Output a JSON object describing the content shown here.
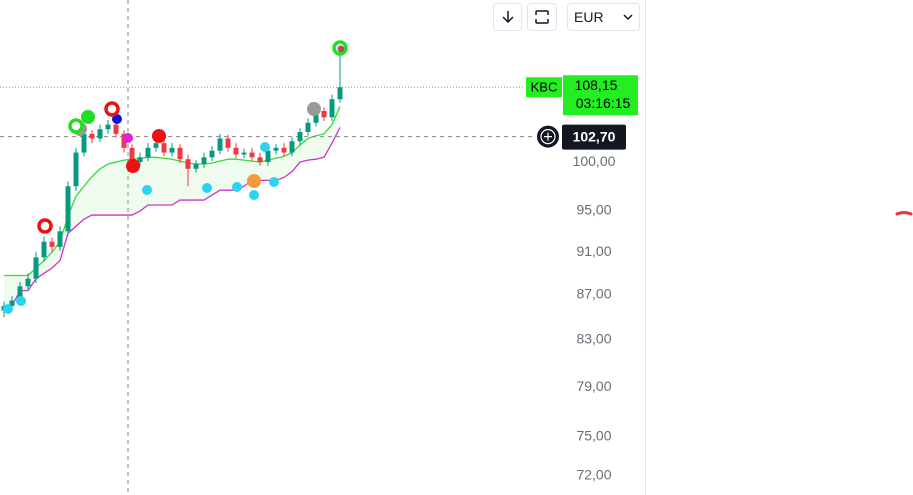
{
  "chart_data": {
    "type": "candlestick",
    "symbol": "KBC",
    "currency": "EUR",
    "countdown": "03:16:15",
    "log_scale": true,
    "ylim": [
      70.56,
      118.5
    ],
    "yticks": [
      {
        "value": 100,
        "label": "100,00"
      },
      {
        "value": 95,
        "label": "95,00"
      },
      {
        "value": 91,
        "label": "91,00"
      },
      {
        "value": 87,
        "label": "87,00"
      },
      {
        "value": 83,
        "label": "83,00"
      },
      {
        "value": 79,
        "label": "79,00"
      },
      {
        "value": 75,
        "label": "75,00"
      },
      {
        "value": 72,
        "label": "72,00"
      }
    ],
    "open": [
      85.6,
      86.0,
      86.5,
      87.8,
      88.5,
      90.5,
      92.0,
      91.5,
      93.0,
      97.5,
      101.0,
      103.0,
      102.5,
      103.5,
      104.0,
      103.0,
      101.5,
      100.0,
      100.5,
      101.5,
      102.0,
      101.0,
      101.5,
      100.3,
      99.3,
      99.8,
      100.5,
      101.2,
      102.5,
      101.5,
      100.8,
      101.0,
      100.5,
      100.0,
      101.2,
      101.5,
      101.0,
      102.2,
      103.2,
      104.2,
      105.5,
      104.8,
      106.8
    ],
    "high": [
      86.4,
      86.9,
      88.2,
      89.0,
      91.0,
      92.5,
      92.4,
      93.5,
      98.0,
      101.5,
      103.6,
      103.4,
      104.0,
      104.5,
      104.4,
      103.4,
      101.9,
      101.0,
      102.0,
      102.6,
      102.5,
      102.0,
      101.9,
      100.8,
      100.2,
      101.0,
      101.7,
      103.0,
      102.9,
      102.0,
      101.4,
      101.5,
      101.0,
      101.6,
      101.9,
      102.0,
      102.6,
      103.6,
      104.7,
      106.0,
      105.9,
      107.3,
      111.9
    ],
    "low": [
      85.0,
      85.5,
      86.1,
      87.4,
      88.1,
      90.1,
      91.0,
      91.1,
      92.6,
      97.0,
      100.6,
      102.0,
      102.1,
      103.0,
      102.6,
      101.0,
      99.5,
      99.6,
      100.1,
      101.1,
      100.6,
      100.6,
      99.9,
      97.5,
      98.9,
      99.4,
      100.1,
      100.8,
      101.1,
      100.4,
      100.4,
      100.1,
      99.6,
      99.6,
      100.8,
      100.6,
      100.6,
      101.8,
      102.8,
      103.8,
      104.4,
      104.4,
      106.4
    ],
    "close": [
      86.0,
      86.5,
      87.8,
      88.5,
      90.5,
      92.0,
      91.5,
      93.0,
      97.5,
      101.0,
      103.0,
      102.5,
      103.5,
      104.0,
      103.0,
      101.5,
      100.0,
      100.5,
      101.5,
      102.0,
      101.0,
      101.5,
      100.3,
      99.3,
      99.8,
      100.5,
      101.2,
      102.5,
      101.5,
      100.8,
      101.0,
      100.5,
      100.0,
      101.2,
      101.5,
      101.0,
      102.2,
      103.2,
      104.2,
      105.5,
      104.8,
      106.8,
      108.15
    ],
    "up_color": "#089981",
    "down_color": "#f23645",
    "series": [
      {
        "color": "#33dd33",
        "values": [
          88.8,
          88.8,
          88.8,
          88.8,
          89.5,
          90.2,
          91.0,
          92.0,
          94.5,
          96.5,
          97.5,
          98.5,
          99.3,
          99.8,
          100.0,
          100.2,
          100.3,
          100.4,
          100.5,
          100.5,
          100.4,
          100.3,
          100.1,
          99.9,
          99.8,
          99.8,
          99.9,
          100.1,
          100.3,
          100.3,
          100.2,
          100.1,
          100.0,
          100.2,
          100.4,
          100.6,
          101.0,
          101.8,
          102.5,
          102.8,
          103.0,
          104.0,
          106.0
        ]
      },
      {
        "color": "#cc33cc",
        "values": [
          85.6,
          86.0,
          87.4,
          87.4,
          88.5,
          89.0,
          89.5,
          90.2,
          92.8,
          93.5,
          94.2,
          94.6,
          94.6,
          94.6,
          94.6,
          94.6,
          94.6,
          95.0,
          95.6,
          95.6,
          95.6,
          95.6,
          96.1,
          96.1,
          96.1,
          96.1,
          96.6,
          97.1,
          97.1,
          97.1,
          97.5,
          98.1,
          98.1,
          98.1,
          98.1,
          98.4,
          99.0,
          100.0,
          100.2,
          100.3,
          100.5,
          102.0,
          103.7
        ]
      }
    ],
    "band_fill": "rgba(60,200,60,0.08)",
    "last_price": {
      "value": 108.15,
      "label": "108,15"
    },
    "last_color": "#22ee22",
    "crosshair_price": {
      "value": 102.7,
      "label": "102,70"
    }
  }
}
